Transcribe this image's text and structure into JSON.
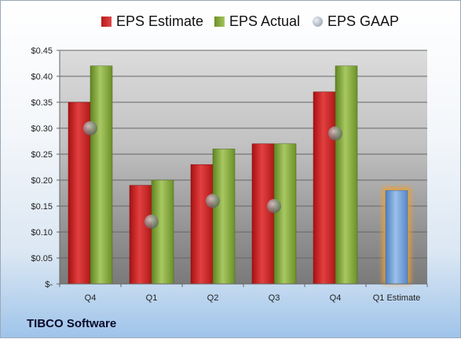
{
  "footer": {
    "company": "TIBCO Software"
  },
  "legend": {
    "estimate": "EPS Estimate",
    "actual": "EPS Actual",
    "gaap": "EPS GAAP"
  },
  "colors": {
    "estimate": "#cc2a2a",
    "actual": "#8db043",
    "gaap": "#9aa3ad",
    "projection": "#6f9fd6",
    "projection_glow": "#f0a030"
  },
  "chart_data": {
    "type": "bar",
    "categories": [
      "Q4",
      "Q1",
      "Q2",
      "Q3",
      "Q4",
      "Q1 Estimate"
    ],
    "series": [
      {
        "name": "EPS Estimate",
        "values": [
          0.35,
          0.19,
          0.23,
          0.27,
          0.37,
          null
        ]
      },
      {
        "name": "EPS Actual",
        "values": [
          0.42,
          0.2,
          0.26,
          0.27,
          0.42,
          null
        ]
      },
      {
        "name": "EPS GAAP",
        "values": [
          0.3,
          0.12,
          0.16,
          0.15,
          0.29,
          null
        ]
      },
      {
        "name": "Q1 Estimate",
        "values": [
          null,
          null,
          null,
          null,
          null,
          0.18
        ]
      }
    ],
    "ylim": [
      0,
      0.45
    ],
    "yticks": [
      0,
      0.05,
      0.1,
      0.15,
      0.2,
      0.25,
      0.3,
      0.35,
      0.4,
      0.45
    ],
    "ytick_labels": [
      "$-",
      "$0.05",
      "$0.10",
      "$0.15",
      "$0.20",
      "$0.25",
      "$0.30",
      "$0.35",
      "$0.40",
      "$0.45"
    ],
    "grid": true,
    "legend_position": "top"
  }
}
